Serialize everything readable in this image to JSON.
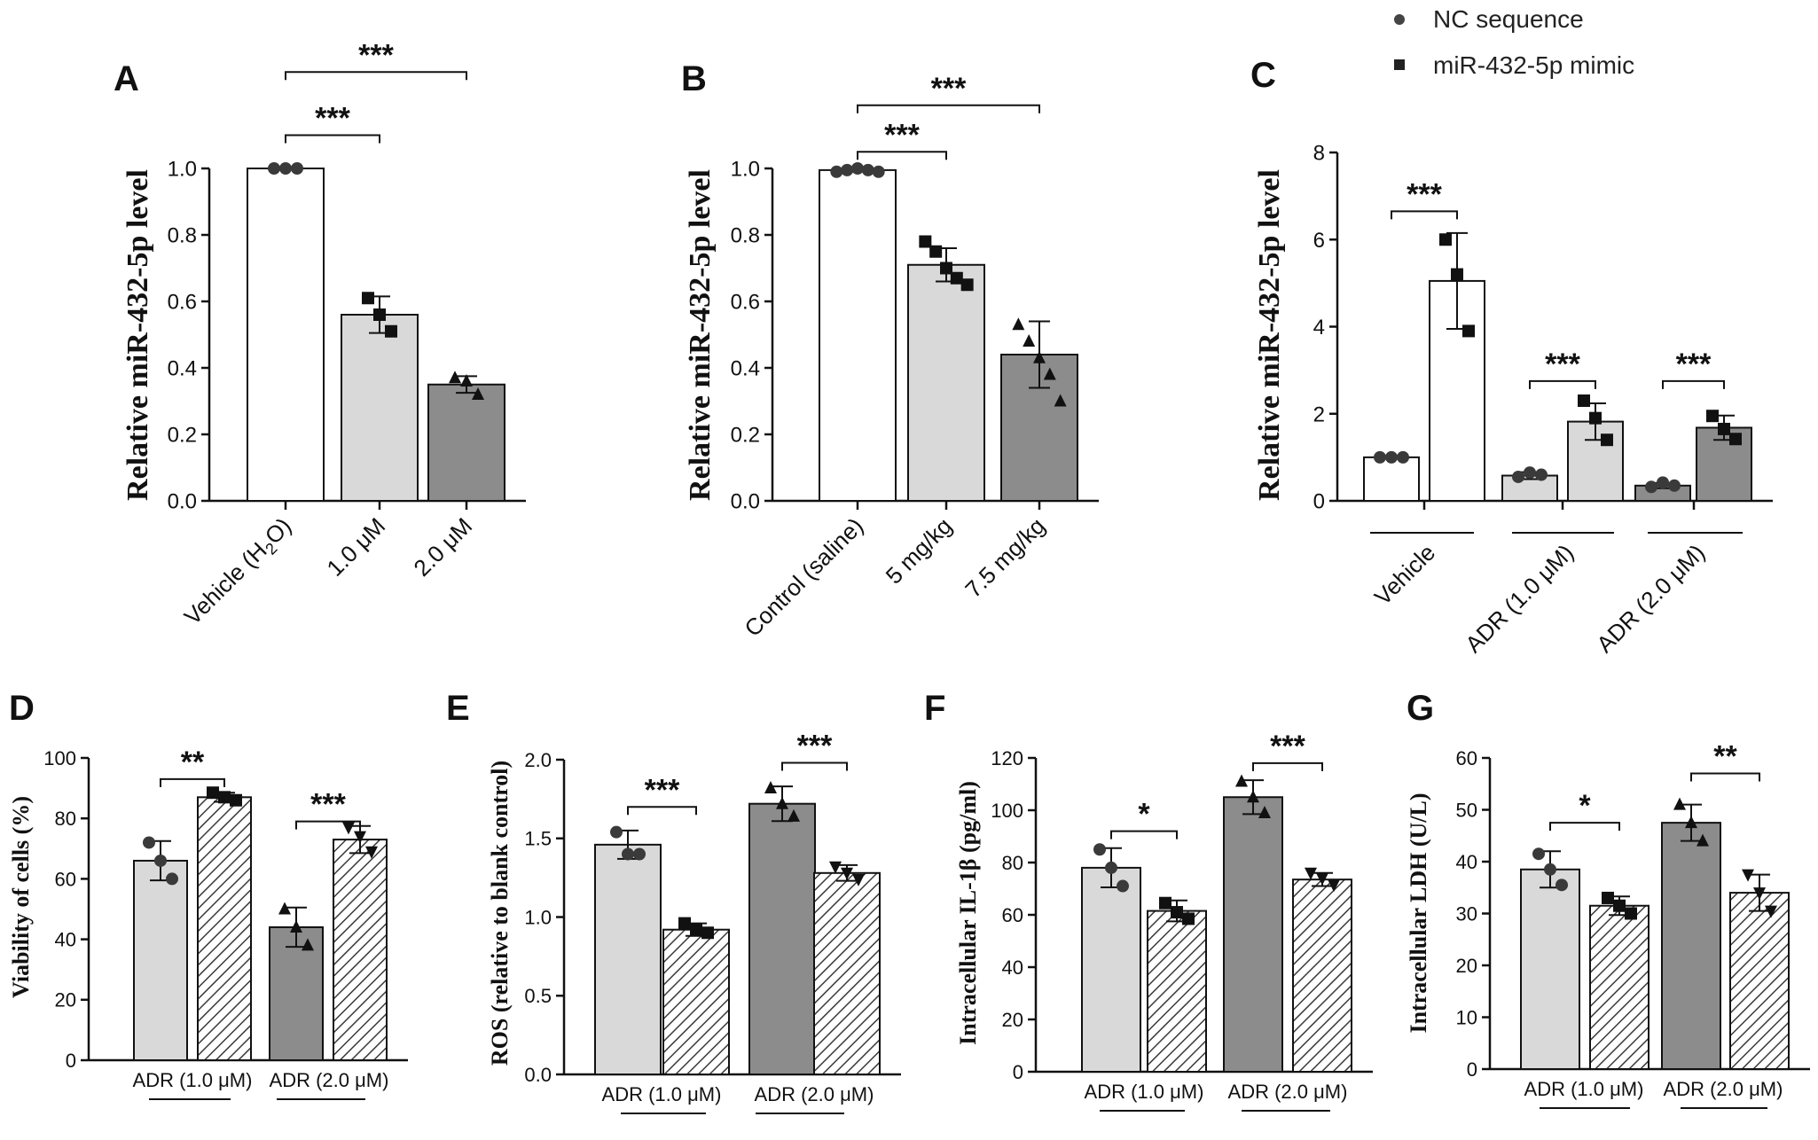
{
  "legend": {
    "items": [
      {
        "label": "NC sequence",
        "marker": "circle"
      },
      {
        "label": "miR-432-5p mimic",
        "marker": "square"
      }
    ]
  },
  "chart_data": [
    {
      "id": "A",
      "panel_label": "A",
      "type": "bar",
      "ylabel": "Relative miR-432-5p level",
      "ylim": [
        0,
        1.0
      ],
      "yticks": [
        "0.0",
        "0.2",
        "0.4",
        "0.6",
        "0.8",
        "1.0"
      ],
      "categories": [
        {
          "label": "Vehicle (H",
          "sub": "2",
          "post": "O)"
        },
        {
          "label": "1.0 μM"
        },
        {
          "label": "2.0 μM"
        }
      ],
      "groups": [],
      "bars": [
        {
          "value": 1.0,
          "err": 0,
          "fill": "#ffffff",
          "hatch": false,
          "marker": "circle",
          "points": [
            1.0,
            1.0,
            1.0
          ]
        },
        {
          "value": 0.56,
          "err": 0.055,
          "fill": "#d9d9d9",
          "hatch": false,
          "marker": "square",
          "points": [
            0.61,
            0.56,
            0.51
          ]
        },
        {
          "value": 0.35,
          "err": 0.025,
          "fill": "#8c8c8c",
          "hatch": false,
          "marker": "triangle",
          "points": [
            0.37,
            0.36,
            0.32
          ]
        }
      ],
      "sig": [
        {
          "from": 0,
          "to": 1,
          "text": "***",
          "level": 1.1
        },
        {
          "from": 0,
          "to": 2,
          "text": "***",
          "level": 1.29
        }
      ]
    },
    {
      "id": "B",
      "panel_label": "B",
      "type": "bar",
      "ylabel": "Relative miR-432-5p level",
      "ylim": [
        0,
        1.0
      ],
      "yticks": [
        "0.0",
        "0.2",
        "0.4",
        "0.6",
        "0.8",
        "1.0"
      ],
      "categories": [
        {
          "label": "Control (saline)"
        },
        {
          "label": "5 mg/kg"
        },
        {
          "label": "7.5 mg/kg"
        }
      ],
      "groups": [],
      "bars": [
        {
          "value": 0.995,
          "err": 0.005,
          "fill": "#ffffff",
          "hatch": false,
          "marker": "circle",
          "points": [
            0.99,
            0.995,
            1.0,
            0.995,
            0.99
          ]
        },
        {
          "value": 0.71,
          "err": 0.05,
          "fill": "#d9d9d9",
          "hatch": false,
          "marker": "square",
          "points": [
            0.78,
            0.75,
            0.7,
            0.67,
            0.65
          ]
        },
        {
          "value": 0.44,
          "err": 0.1,
          "fill": "#8c8c8c",
          "hatch": false,
          "marker": "triangle",
          "points": [
            0.53,
            0.48,
            0.43,
            0.38,
            0.3
          ]
        }
      ],
      "sig": [
        {
          "from": 0,
          "to": 1,
          "text": "***",
          "level": 1.05
        },
        {
          "from": 0,
          "to": 2,
          "text": "***",
          "level": 1.19
        }
      ]
    },
    {
      "id": "C",
      "panel_label": "C",
      "type": "bar",
      "ylabel": "Relative miR-432-5p level",
      "ylim": [
        0,
        8
      ],
      "yticks": [
        "0",
        "2",
        "4",
        "6",
        "8"
      ],
      "categories": [],
      "groups": [
        "Vehicle",
        "ADR (1.0 μM)",
        "ADR (2.0 μM)"
      ],
      "bars": [
        {
          "value": 1.0,
          "err": 0.02,
          "fill": "#ffffff",
          "hatch": false,
          "marker": "circle",
          "points": [
            1.0,
            1.0,
            1.0
          ]
        },
        {
          "value": 5.05,
          "err": 1.1,
          "fill": "#ffffff",
          "hatch": false,
          "marker": "square",
          "points": [
            6.0,
            5.2,
            3.9
          ]
        },
        {
          "value": 0.58,
          "err": 0.08,
          "fill": "#d9d9d9",
          "hatch": false,
          "marker": "circle",
          "points": [
            0.55,
            0.65,
            0.6
          ]
        },
        {
          "value": 1.82,
          "err": 0.42,
          "fill": "#d9d9d9",
          "hatch": false,
          "marker": "square",
          "points": [
            2.3,
            1.9,
            1.4
          ]
        },
        {
          "value": 0.35,
          "err": 0.06,
          "fill": "#8c8c8c",
          "hatch": false,
          "marker": "circle",
          "points": [
            0.32,
            0.42,
            0.35
          ]
        },
        {
          "value": 1.68,
          "err": 0.28,
          "fill": "#8c8c8c",
          "hatch": false,
          "marker": "square",
          "points": [
            1.95,
            1.65,
            1.42
          ]
        }
      ],
      "sig": [
        {
          "from": 0,
          "to": 1,
          "text": "***",
          "level": 6.65
        },
        {
          "from": 2,
          "to": 3,
          "text": "***",
          "level": 2.75
        },
        {
          "from": 4,
          "to": 5,
          "text": "***",
          "level": 2.75
        }
      ]
    },
    {
      "id": "D",
      "panel_label": "D",
      "type": "bar",
      "ylabel": "Viability of cells (%)",
      "ylim": [
        0,
        100
      ],
      "yticks": [
        "0",
        "20",
        "40",
        "60",
        "80",
        "100"
      ],
      "categories": [],
      "groups": [
        "ADR (1.0 μM)",
        "ADR (2.0 μM)"
      ],
      "bars": [
        {
          "value": 66,
          "err": 6.5,
          "fill": "#d9d9d9",
          "hatch": false,
          "marker": "circle",
          "points": [
            72,
            66,
            60
          ]
        },
        {
          "value": 87,
          "err": 1.5,
          "fill": "#ffffff",
          "hatch": true,
          "marker": "square",
          "points": [
            88.5,
            87,
            86
          ]
        },
        {
          "value": 44,
          "err": 6.5,
          "fill": "#8c8c8c",
          "hatch": false,
          "marker": "triangle",
          "points": [
            50,
            44,
            38
          ]
        },
        {
          "value": 73,
          "err": 4.5,
          "fill": "#ffffff",
          "hatch": true,
          "marker": "triangle-down",
          "points": [
            77,
            74,
            69
          ]
        }
      ],
      "sig": [
        {
          "from": 0,
          "to": 1,
          "text": "**",
          "level": 93
        },
        {
          "from": 2,
          "to": 3,
          "text": "***",
          "level": 79
        }
      ]
    },
    {
      "id": "E",
      "panel_label": "E",
      "type": "bar",
      "ylabel": "ROS (relative to blank control)",
      "ylim": [
        0,
        2.0
      ],
      "yticks": [
        "0.0",
        "0.5",
        "1.0",
        "1.5",
        "2.0"
      ],
      "categories": [],
      "groups": [
        "ADR (1.0 μM)",
        "ADR (2.0 μM)"
      ],
      "bars": [
        {
          "value": 1.46,
          "err": 0.09,
          "fill": "#d9d9d9",
          "hatch": false,
          "marker": "circle",
          "points": [
            1.54,
            1.4,
            1.4
          ]
        },
        {
          "value": 0.92,
          "err": 0.04,
          "fill": "#ffffff",
          "hatch": true,
          "marker": "square",
          "points": [
            0.96,
            0.92,
            0.9
          ]
        },
        {
          "value": 1.72,
          "err": 0.11,
          "fill": "#8c8c8c",
          "hatch": false,
          "marker": "triangle",
          "points": [
            1.82,
            1.72,
            1.64
          ]
        },
        {
          "value": 1.28,
          "err": 0.05,
          "fill": "#ffffff",
          "hatch": true,
          "marker": "triangle-down",
          "points": [
            1.32,
            1.28,
            1.24
          ]
        }
      ],
      "sig": [
        {
          "from": 0,
          "to": 1,
          "text": "***",
          "level": 1.7
        },
        {
          "from": 2,
          "to": 3,
          "text": "***",
          "level": 1.98
        }
      ]
    },
    {
      "id": "F",
      "panel_label": "F",
      "type": "bar",
      "ylabel": "Intracellular IL-1β (pg/ml)",
      "ylim": [
        0,
        120
      ],
      "yticks": [
        "0",
        "20",
        "40",
        "60",
        "80",
        "100",
        "120"
      ],
      "categories": [],
      "groups": [
        "ADR (1.0 μM)",
        "ADR (2.0 μM)"
      ],
      "bars": [
        {
          "value": 78,
          "err": 7.5,
          "fill": "#d9d9d9",
          "hatch": false,
          "marker": "circle",
          "points": [
            85,
            78,
            71
          ]
        },
        {
          "value": 61.5,
          "err": 4,
          "fill": "#ffffff",
          "hatch": true,
          "marker": "square",
          "points": [
            64.5,
            61,
            58.5
          ]
        },
        {
          "value": 105,
          "err": 6.5,
          "fill": "#8c8c8c",
          "hatch": false,
          "marker": "triangle",
          "points": [
            111,
            105,
            99
          ]
        },
        {
          "value": 73.5,
          "err": 2.5,
          "fill": "#ffffff",
          "hatch": true,
          "marker": "triangle-down",
          "points": [
            76,
            74,
            71.5
          ]
        }
      ],
      "sig": [
        {
          "from": 0,
          "to": 1,
          "text": "*",
          "level": 92
        },
        {
          "from": 2,
          "to": 3,
          "text": "***",
          "level": 118
        }
      ]
    },
    {
      "id": "G",
      "panel_label": "G",
      "type": "bar",
      "ylabel": "Intracellular LDH (U/L)",
      "ylim": [
        0,
        60
      ],
      "yticks": [
        "0",
        "10",
        "20",
        "30",
        "40",
        "50",
        "60"
      ],
      "categories": [],
      "groups": [
        "ADR (1.0 μM)",
        "ADR (2.0 μM)"
      ],
      "bars": [
        {
          "value": 38.5,
          "err": 3.5,
          "fill": "#d9d9d9",
          "hatch": false,
          "marker": "circle",
          "points": [
            41.5,
            38.5,
            35.5
          ]
        },
        {
          "value": 31.5,
          "err": 1.8,
          "fill": "#ffffff",
          "hatch": true,
          "marker": "square",
          "points": [
            33,
            31.5,
            30
          ]
        },
        {
          "value": 47.5,
          "err": 3.5,
          "fill": "#8c8c8c",
          "hatch": false,
          "marker": "triangle",
          "points": [
            51,
            47.5,
            44
          ]
        },
        {
          "value": 34,
          "err": 3.5,
          "fill": "#ffffff",
          "hatch": true,
          "marker": "triangle-down",
          "points": [
            37.5,
            34,
            30.5
          ]
        }
      ],
      "sig": [
        {
          "from": 0,
          "to": 1,
          "text": "*",
          "level": 47.5
        },
        {
          "from": 2,
          "to": 3,
          "text": "**",
          "level": 57
        }
      ]
    }
  ]
}
